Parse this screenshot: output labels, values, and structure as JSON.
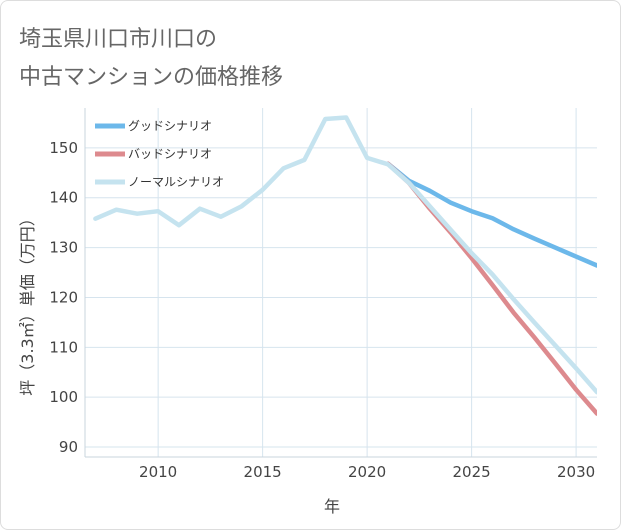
{
  "title": {
    "line1": "埼玉県川口市川口の",
    "line2": "中古マンションの価格推移"
  },
  "chart_data": {
    "type": "line",
    "title": "埼玉県川口市川口の中古マンションの価格推移",
    "xlabel": "年",
    "ylabel": "坪（3.3㎡）単価（万円）",
    "xlim": [
      2006.5,
      2031
    ],
    "ylim": [
      88,
      158
    ],
    "xticks": [
      2010,
      2015,
      2020,
      2025,
      2030
    ],
    "yticks": [
      90,
      100,
      110,
      120,
      130,
      140,
      150
    ],
    "grid": true,
    "legend_position": "top-left",
    "series": [
      {
        "name": "グッドシナリオ",
        "color": "#6cb8ea",
        "x": [
          2021,
          2022,
          2023,
          2024,
          2025,
          2026,
          2027,
          2028,
          2029,
          2030,
          2031
        ],
        "y": [
          146.8,
          143.4,
          141.4,
          139.0,
          137.3,
          135.9,
          133.7,
          131.8,
          130.0,
          128.2,
          126.4
        ]
      },
      {
        "name": "バッドシナリオ",
        "color": "#dd8a8e",
        "x": [
          2021,
          2022,
          2023,
          2024,
          2025,
          2026,
          2027,
          2028,
          2029,
          2030,
          2031
        ],
        "y": [
          146.8,
          143.0,
          137.8,
          133.0,
          127.9,
          122.5,
          117.0,
          112.0,
          106.8,
          101.5,
          96.7
        ]
      },
      {
        "name": "ノーマルシナリオ",
        "color": "#c5e3ef",
        "x": [
          2007,
          2008,
          2009,
          2010,
          2011,
          2012,
          2013,
          2014,
          2015,
          2016,
          2017,
          2018,
          2019,
          2020,
          2021,
          2022,
          2023,
          2024,
          2025,
          2026,
          2027,
          2028,
          2029,
          2030,
          2031
        ],
        "y": [
          135.8,
          137.6,
          136.8,
          137.3,
          134.5,
          137.8,
          136.2,
          138.3,
          141.6,
          145.9,
          147.6,
          155.8,
          156.1,
          148.0,
          146.7,
          143.0,
          138.3,
          133.6,
          128.9,
          124.6,
          119.7,
          115.0,
          110.4,
          105.8,
          101.0
        ]
      }
    ]
  }
}
